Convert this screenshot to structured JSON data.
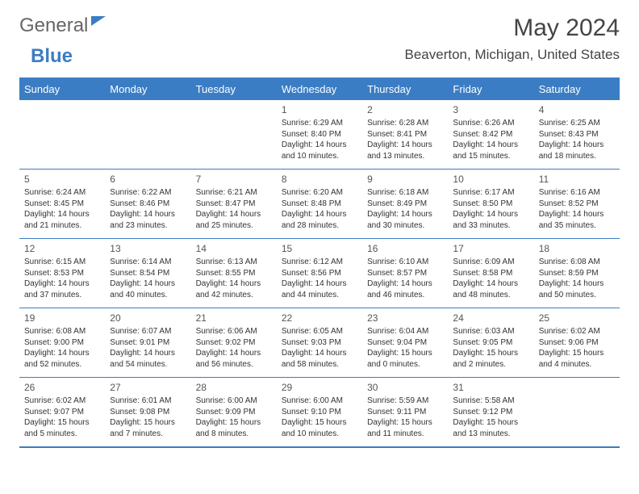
{
  "brand": {
    "part1": "General",
    "part2": "Blue"
  },
  "title": "May 2024",
  "location": "Beaverton, Michigan, United States",
  "colors": {
    "accent": "#3b7dc4",
    "text": "#444444",
    "bg": "#ffffff"
  },
  "dow": [
    "Sunday",
    "Monday",
    "Tuesday",
    "Wednesday",
    "Thursday",
    "Friday",
    "Saturday"
  ],
  "weeks": [
    [
      null,
      null,
      null,
      {
        "d": "1",
        "sr": "6:29 AM",
        "ss": "8:40 PM",
        "dl": "14 hours and 10 minutes."
      },
      {
        "d": "2",
        "sr": "6:28 AM",
        "ss": "8:41 PM",
        "dl": "14 hours and 13 minutes."
      },
      {
        "d": "3",
        "sr": "6:26 AM",
        "ss": "8:42 PM",
        "dl": "14 hours and 15 minutes."
      },
      {
        "d": "4",
        "sr": "6:25 AM",
        "ss": "8:43 PM",
        "dl": "14 hours and 18 minutes."
      }
    ],
    [
      {
        "d": "5",
        "sr": "6:24 AM",
        "ss": "8:45 PM",
        "dl": "14 hours and 21 minutes."
      },
      {
        "d": "6",
        "sr": "6:22 AM",
        "ss": "8:46 PM",
        "dl": "14 hours and 23 minutes."
      },
      {
        "d": "7",
        "sr": "6:21 AM",
        "ss": "8:47 PM",
        "dl": "14 hours and 25 minutes."
      },
      {
        "d": "8",
        "sr": "6:20 AM",
        "ss": "8:48 PM",
        "dl": "14 hours and 28 minutes."
      },
      {
        "d": "9",
        "sr": "6:18 AM",
        "ss": "8:49 PM",
        "dl": "14 hours and 30 minutes."
      },
      {
        "d": "10",
        "sr": "6:17 AM",
        "ss": "8:50 PM",
        "dl": "14 hours and 33 minutes."
      },
      {
        "d": "11",
        "sr": "6:16 AM",
        "ss": "8:52 PM",
        "dl": "14 hours and 35 minutes."
      }
    ],
    [
      {
        "d": "12",
        "sr": "6:15 AM",
        "ss": "8:53 PM",
        "dl": "14 hours and 37 minutes."
      },
      {
        "d": "13",
        "sr": "6:14 AM",
        "ss": "8:54 PM",
        "dl": "14 hours and 40 minutes."
      },
      {
        "d": "14",
        "sr": "6:13 AM",
        "ss": "8:55 PM",
        "dl": "14 hours and 42 minutes."
      },
      {
        "d": "15",
        "sr": "6:12 AM",
        "ss": "8:56 PM",
        "dl": "14 hours and 44 minutes."
      },
      {
        "d": "16",
        "sr": "6:10 AM",
        "ss": "8:57 PM",
        "dl": "14 hours and 46 minutes."
      },
      {
        "d": "17",
        "sr": "6:09 AM",
        "ss": "8:58 PM",
        "dl": "14 hours and 48 minutes."
      },
      {
        "d": "18",
        "sr": "6:08 AM",
        "ss": "8:59 PM",
        "dl": "14 hours and 50 minutes."
      }
    ],
    [
      {
        "d": "19",
        "sr": "6:08 AM",
        "ss": "9:00 PM",
        "dl": "14 hours and 52 minutes."
      },
      {
        "d": "20",
        "sr": "6:07 AM",
        "ss": "9:01 PM",
        "dl": "14 hours and 54 minutes."
      },
      {
        "d": "21",
        "sr": "6:06 AM",
        "ss": "9:02 PM",
        "dl": "14 hours and 56 minutes."
      },
      {
        "d": "22",
        "sr": "6:05 AM",
        "ss": "9:03 PM",
        "dl": "14 hours and 58 minutes."
      },
      {
        "d": "23",
        "sr": "6:04 AM",
        "ss": "9:04 PM",
        "dl": "15 hours and 0 minutes."
      },
      {
        "d": "24",
        "sr": "6:03 AM",
        "ss": "9:05 PM",
        "dl": "15 hours and 2 minutes."
      },
      {
        "d": "25",
        "sr": "6:02 AM",
        "ss": "9:06 PM",
        "dl": "15 hours and 4 minutes."
      }
    ],
    [
      {
        "d": "26",
        "sr": "6:02 AM",
        "ss": "9:07 PM",
        "dl": "15 hours and 5 minutes."
      },
      {
        "d": "27",
        "sr": "6:01 AM",
        "ss": "9:08 PM",
        "dl": "15 hours and 7 minutes."
      },
      {
        "d": "28",
        "sr": "6:00 AM",
        "ss": "9:09 PM",
        "dl": "15 hours and 8 minutes."
      },
      {
        "d": "29",
        "sr": "6:00 AM",
        "ss": "9:10 PM",
        "dl": "15 hours and 10 minutes."
      },
      {
        "d": "30",
        "sr": "5:59 AM",
        "ss": "9:11 PM",
        "dl": "15 hours and 11 minutes."
      },
      {
        "d": "31",
        "sr": "5:58 AM",
        "ss": "9:12 PM",
        "dl": "15 hours and 13 minutes."
      },
      null
    ]
  ],
  "labels": {
    "sunrise": "Sunrise: ",
    "sunset": "Sunset: ",
    "daylight": "Daylight: "
  }
}
